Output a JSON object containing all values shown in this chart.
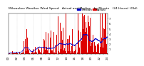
{
  "title": "Milwaukee Weather Wind Speed  Actual and Median  by Minute  (24 Hours) (Old)",
  "background_color": "#ffffff",
  "bar_color": "#dd0000",
  "median_color": "#0000cc",
  "grid_color": "#aaaaaa",
  "ylim": [
    0,
    8
  ],
  "xlim": [
    0,
    1440
  ],
  "n_points": 1440,
  "title_fontsize": 3.2,
  "tick_fontsize": 2.8,
  "legend_fontsize": 3.0,
  "yticks": [
    1,
    2,
    3,
    4,
    5,
    6,
    7
  ],
  "seed": 17
}
